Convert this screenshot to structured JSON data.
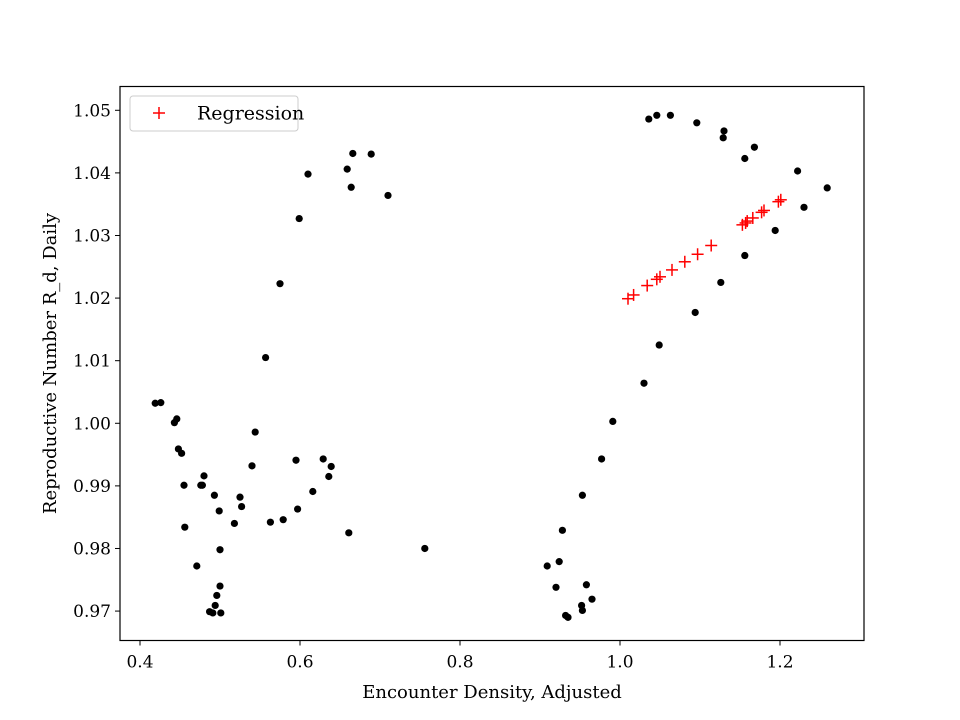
{
  "chart_data": {
    "type": "scatter",
    "xlabel": "Encounter Density, Adjusted",
    "ylabel": "Reproductive Number R_d, Daily",
    "xlim": [
      0.375,
      1.305
    ],
    "ylim": [
      0.9653,
      1.0538
    ],
    "xticks": [
      0.4,
      0.6,
      0.8,
      1.0,
      1.2
    ],
    "xtick_labels": [
      "0.4",
      "0.6",
      "0.8",
      "1.0",
      "1.2"
    ],
    "yticks": [
      0.97,
      0.98,
      0.99,
      1.0,
      1.01,
      1.02,
      1.03,
      1.04,
      1.05
    ],
    "ytick_labels": [
      "0.97",
      "0.98",
      "0.99",
      "1.00",
      "1.01",
      "1.02",
      "1.03",
      "1.04",
      "1.05"
    ],
    "grid": false,
    "legend": {
      "position": "top-left",
      "entries": [
        "Regression"
      ]
    },
    "series": [
      {
        "marker": "dot",
        "color": "#000000",
        "points": [
          [
            0.419,
            1.0032
          ],
          [
            0.426,
            1.0033
          ],
          [
            0.443,
            1.0001
          ],
          [
            0.446,
            1.0007
          ],
          [
            0.448,
            0.9959
          ],
          [
            0.452,
            0.9952
          ],
          [
            0.455,
            0.9901
          ],
          [
            0.456,
            0.9834
          ],
          [
            0.471,
            0.9772
          ],
          [
            0.476,
            0.9901
          ],
          [
            0.478,
            0.9901
          ],
          [
            0.48,
            0.9916
          ],
          [
            0.487,
            0.9699
          ],
          [
            0.491,
            0.9697
          ],
          [
            0.493,
            0.9885
          ],
          [
            0.494,
            0.9709
          ],
          [
            0.496,
            0.9725
          ],
          [
            0.499,
            0.986
          ],
          [
            0.5,
            0.9798
          ],
          [
            0.5,
            0.974
          ],
          [
            0.501,
            0.9697
          ],
          [
            0.518,
            0.984
          ],
          [
            0.525,
            0.9882
          ],
          [
            0.527,
            0.9867
          ],
          [
            0.54,
            0.9932
          ],
          [
            0.544,
            0.9986
          ],
          [
            0.557,
            1.0105
          ],
          [
            0.563,
            0.9842
          ],
          [
            0.575,
            1.0223
          ],
          [
            0.579,
            0.9846
          ],
          [
            0.595,
            0.9941
          ],
          [
            0.597,
            0.9863
          ],
          [
            0.599,
            1.0327
          ],
          [
            0.61,
            1.0398
          ],
          [
            0.616,
            0.9891
          ],
          [
            0.629,
            0.9943
          ],
          [
            0.636,
            0.9915
          ],
          [
            0.639,
            0.9931
          ],
          [
            0.659,
            1.0406
          ],
          [
            0.661,
            0.9825
          ],
          [
            0.664,
            1.0377
          ],
          [
            0.666,
            1.0431
          ],
          [
            0.689,
            1.043
          ],
          [
            0.71,
            1.0364
          ],
          [
            0.756,
            0.98
          ],
          [
            0.909,
            0.9772
          ],
          [
            0.92,
            0.9738
          ],
          [
            0.924,
            0.9779
          ],
          [
            0.928,
            0.9829
          ],
          [
            0.932,
            0.9693
          ],
          [
            0.935,
            0.969
          ],
          [
            0.952,
            0.9709
          ],
          [
            0.953,
            0.9701
          ],
          [
            0.953,
            0.9885
          ],
          [
            0.958,
            0.9742
          ],
          [
            0.965,
            0.9719
          ],
          [
            0.977,
            0.9943
          ],
          [
            0.991,
            1.0003
          ],
          [
            1.03,
            1.0064
          ],
          [
            1.036,
            1.0486
          ],
          [
            1.046,
            1.0492
          ],
          [
            1.049,
            1.0125
          ],
          [
            1.063,
            1.0492
          ],
          [
            1.094,
            1.0177
          ],
          [
            1.096,
            1.048
          ],
          [
            1.126,
            1.0225
          ],
          [
            1.129,
            1.0456
          ],
          [
            1.13,
            1.0467
          ],
          [
            1.156,
            1.0268
          ],
          [
            1.156,
            1.0423
          ],
          [
            1.168,
            1.0441
          ],
          [
            1.194,
            1.0308
          ],
          [
            1.222,
            1.0403
          ],
          [
            1.23,
            1.0345
          ],
          [
            1.259,
            1.0376
          ]
        ]
      },
      {
        "name": "Regression",
        "marker": "plus",
        "color": "#ff0000",
        "points": [
          [
            1.01,
            1.0199
          ],
          [
            1.017,
            1.0205
          ],
          [
            1.034,
            1.022
          ],
          [
            1.046,
            1.023
          ],
          [
            1.05,
            1.0234
          ],
          [
            1.065,
            1.0245
          ],
          [
            1.081,
            1.0258
          ],
          [
            1.097,
            1.027
          ],
          [
            1.114,
            1.0284
          ],
          [
            1.153,
            1.0317
          ],
          [
            1.157,
            1.032
          ],
          [
            1.159,
            1.0323
          ],
          [
            1.166,
            1.0328
          ],
          [
            1.177,
            1.0337
          ],
          [
            1.18,
            1.034
          ],
          [
            1.198,
            1.0354
          ],
          [
            1.201,
            1.0357
          ]
        ]
      }
    ]
  }
}
